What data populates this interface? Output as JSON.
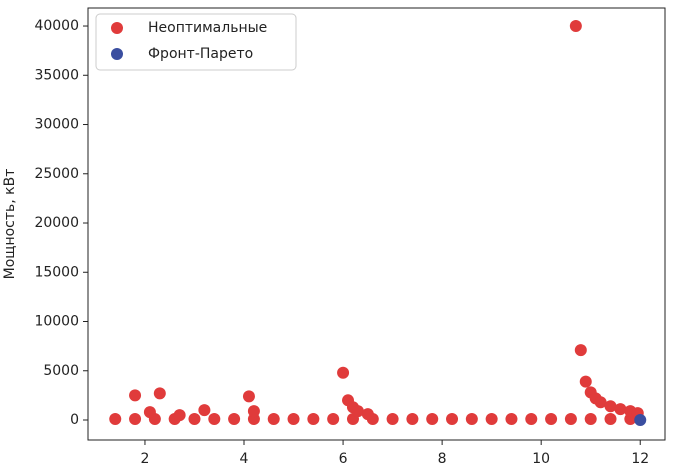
{
  "chart_data": {
    "type": "scatter",
    "y_label": "Мощность, кВт",
    "xlim": [
      0.85,
      12.5
    ],
    "ylim": [
      -2030,
      41830
    ],
    "xticks": [
      2,
      4,
      6,
      8,
      10,
      12
    ],
    "yticks": [
      0,
      5000,
      10000,
      15000,
      20000,
      25000,
      30000,
      35000,
      40000
    ],
    "legend": "upper-left",
    "series": [
      {
        "name": "Неоптимальные",
        "color": "#e03b3b",
        "x": [
          1.4,
          1.8,
          2.2,
          2.6,
          3.0,
          3.4,
          3.8,
          4.2,
          4.6,
          5.0,
          5.4,
          5.8,
          6.2,
          6.6,
          7.0,
          7.4,
          7.8,
          8.2,
          8.6,
          9.0,
          9.4,
          9.8,
          10.2,
          10.6,
          11.0,
          11.4,
          11.8,
          1.8,
          2.3,
          2.1,
          2.7,
          3.2,
          4.1,
          4.2,
          6.0,
          6.1,
          6.2,
          6.3,
          6.5,
          10.7,
          10.8,
          10.9,
          11.0,
          11.1,
          11.2,
          11.4,
          11.6,
          11.8,
          11.95
        ],
        "values": [
          100,
          100,
          100,
          100,
          100,
          100,
          100,
          100,
          100,
          100,
          100,
          100,
          100,
          100,
          100,
          100,
          100,
          100,
          100,
          100,
          100,
          100,
          100,
          100,
          100,
          100,
          100,
          2500,
          2700,
          800,
          500,
          1000,
          2400,
          900,
          4800,
          2000,
          1300,
          900,
          600,
          40000,
          7100,
          3900,
          2800,
          2200,
          1800,
          1400,
          1100,
          900,
          700
        ]
      },
      {
        "name": "Фронт-Парето",
        "color": "#3a4ea0",
        "x": [
          12
        ],
        "values": [
          0
        ]
      }
    ]
  }
}
